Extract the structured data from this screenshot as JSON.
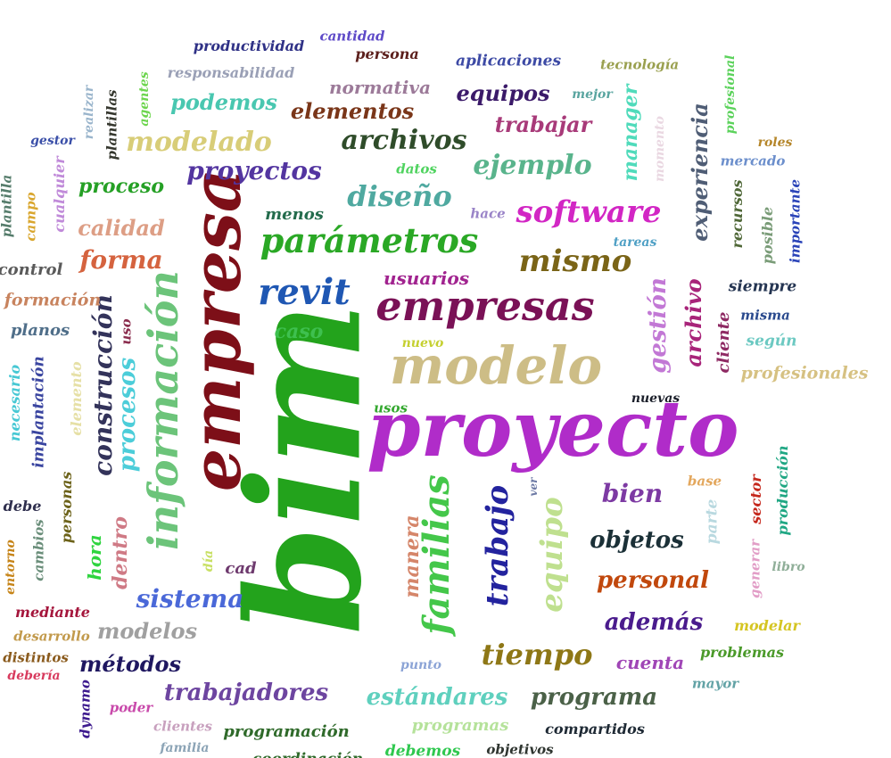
{
  "words": [
    {
      "text": "bim",
      "color": "#23a31c"
    },
    {
      "text": "proyecto",
      "color": "#b02cc9"
    },
    {
      "text": "empresa",
      "color": "#7d0f18"
    },
    {
      "text": "modelo",
      "color": "#cdbd86"
    },
    {
      "text": "información",
      "color": "#6cc47a"
    },
    {
      "text": "empresas",
      "color": "#7a1156"
    },
    {
      "text": "parámetros",
      "color": "#2aa825"
    },
    {
      "text": "revit",
      "color": "#1f57b3"
    },
    {
      "text": "software",
      "color": "#d226c4"
    },
    {
      "text": "mismo",
      "color": "#7a6417"
    },
    {
      "text": "familias",
      "color": "#44c74a"
    },
    {
      "text": "trabajo",
      "color": "#23239e"
    },
    {
      "text": "equipo",
      "color": "#bfe08f"
    },
    {
      "text": "proyectos",
      "color": "#5335a0"
    },
    {
      "text": "diseño",
      "color": "#4fa9a0"
    },
    {
      "text": "archivos",
      "color": "#2f4c2a"
    },
    {
      "text": "ejemplo",
      "color": "#59b48c"
    },
    {
      "text": "modelado",
      "color": "#d8cd78"
    },
    {
      "text": "forma",
      "color": "#d5633f"
    },
    {
      "text": "calidad",
      "color": "#dd9e85"
    },
    {
      "text": "construcción",
      "color": "#33335a"
    },
    {
      "text": "procesos",
      "color": "#4ccdd9"
    },
    {
      "text": "gestión",
      "color": "#c278d5"
    },
    {
      "text": "archivo",
      "color": "#a8247a"
    },
    {
      "text": "experiencia",
      "color": "#4f5d75"
    },
    {
      "text": "manager",
      "color": "#50dbbb"
    },
    {
      "text": "tiempo",
      "color": "#8e7716"
    },
    {
      "text": "sistema",
      "color": "#4a68d8"
    },
    {
      "text": "personal",
      "color": "#c1480d"
    },
    {
      "text": "objetos",
      "color": "#1b3037"
    },
    {
      "text": "bien",
      "color": "#7d3aa3"
    },
    {
      "text": "además",
      "color": "#4a1b8d"
    },
    {
      "text": "trabajadores",
      "color": "#6d45a0"
    },
    {
      "text": "estándares",
      "color": "#5fd0be"
    },
    {
      "text": "programa",
      "color": "#4b6148"
    },
    {
      "text": "modelos",
      "color": "#a0a0a0"
    },
    {
      "text": "métodos",
      "color": "#1f1760"
    },
    {
      "text": "trabajar",
      "color": "#a83a79"
    },
    {
      "text": "elementos",
      "color": "#7a3619"
    },
    {
      "text": "equipos",
      "color": "#3b1a69"
    },
    {
      "text": "podemos",
      "color": "#49c7b0"
    },
    {
      "text": "normativa",
      "color": "#9c7a99"
    },
    {
      "text": "proceso",
      "color": "#25a025"
    },
    {
      "text": "usuarios",
      "color": "#a1238f"
    },
    {
      "text": "cuenta",
      "color": "#a046b6"
    },
    {
      "text": "manera",
      "color": "#d5866a"
    },
    {
      "text": "dentro",
      "color": "#cf7a85"
    },
    {
      "text": "caso",
      "color": "#3ec04f"
    },
    {
      "text": "formación",
      "color": "#c8835e"
    },
    {
      "text": "planos",
      "color": "#4f6e89"
    },
    {
      "text": "hora",
      "color": "#2fd43f"
    },
    {
      "text": "profesionales",
      "color": "#d6c182"
    },
    {
      "text": "programas",
      "color": "#b5e29a"
    },
    {
      "text": "programación",
      "color": "#2f6a2a"
    },
    {
      "text": "control",
      "color": "#5a5a5a"
    },
    {
      "text": "cliente",
      "color": "#8e2a63"
    },
    {
      "text": "menos",
      "color": "#236b4c"
    },
    {
      "text": "siempre",
      "color": "#253552"
    },
    {
      "text": "recursos",
      "color": "#506838"
    },
    {
      "text": "posible",
      "color": "#7a9c78"
    },
    {
      "text": "importante",
      "color": "#2a43b8"
    },
    {
      "text": "según",
      "color": "#6cc9c2"
    },
    {
      "text": "producción",
      "color": "#20a784"
    },
    {
      "text": "sector",
      "color": "#c5271c"
    },
    {
      "text": "parte",
      "color": "#b9d9e0"
    },
    {
      "text": "generar",
      "color": "#e29ec7"
    },
    {
      "text": "elemento",
      "color": "#e6e0a6"
    },
    {
      "text": "implantación",
      "color": "#3a45a0"
    },
    {
      "text": "necesario",
      "color": "#47c8d4"
    },
    {
      "text": "personas",
      "color": "#6c6219"
    },
    {
      "text": "mediante",
      "color": "#a5163c"
    },
    {
      "text": "desarrollo",
      "color": "#c29a4c"
    },
    {
      "text": "distintos",
      "color": "#8a5a1c"
    },
    {
      "text": "debería",
      "color": "#d83b5e"
    },
    {
      "text": "debe",
      "color": "#2f2f4e"
    },
    {
      "text": "cambios",
      "color": "#6a8e7a"
    },
    {
      "text": "entorno",
      "color": "#c68418"
    },
    {
      "text": "dynamo",
      "color": "#3d1a8e"
    },
    {
      "text": "poder",
      "color": "#c94aab"
    },
    {
      "text": "clientes",
      "color": "#c8a0be"
    },
    {
      "text": "familia",
      "color": "#8ca4b6"
    },
    {
      "text": "cad",
      "color": "#6e3a6e"
    },
    {
      "text": "día",
      "color": "#c8e064"
    },
    {
      "text": "punto",
      "color": "#8ca4d6"
    },
    {
      "text": "mayor",
      "color": "#63a3a6"
    },
    {
      "text": "problemas",
      "color": "#4b9a2a"
    },
    {
      "text": "modelar",
      "color": "#d5c522"
    },
    {
      "text": "libro",
      "color": "#8fae98"
    },
    {
      "text": "base",
      "color": "#e3a75d"
    },
    {
      "text": "ver",
      "color": "#6d7aa5"
    },
    {
      "text": "nuevas",
      "color": "#1b1f2a"
    },
    {
      "text": "usos",
      "color": "#35a830"
    },
    {
      "text": "nuevo",
      "color": "#c5d030"
    },
    {
      "text": "uso",
      "color": "#8b2d4e"
    },
    {
      "text": "misma",
      "color": "#2a4a8e"
    },
    {
      "text": "hace",
      "color": "#9a84c8"
    },
    {
      "text": "tareas",
      "color": "#4fa0c5"
    },
    {
      "text": "datos",
      "color": "#4fd35f"
    },
    {
      "text": "mercado",
      "color": "#6c8fcc"
    },
    {
      "text": "roles",
      "color": "#b5862a"
    },
    {
      "text": "profesional",
      "color": "#5bd25b"
    },
    {
      "text": "momento",
      "color": "#ead8e2"
    },
    {
      "text": "mejor",
      "color": "#5aa5a0"
    },
    {
      "text": "tecnología",
      "color": "#9aa04f"
    },
    {
      "text": "aplicaciones",
      "color": "#3d4aa5"
    },
    {
      "text": "persona",
      "color": "#5c1f1c"
    },
    {
      "text": "cantidad",
      "color": "#5e4ac8"
    },
    {
      "text": "productividad",
      "color": "#2f3186"
    },
    {
      "text": "responsabilidad",
      "color": "#9aa0b6"
    },
    {
      "text": "agentes",
      "color": "#6dd54e"
    },
    {
      "text": "realizar",
      "color": "#9ab5cc"
    },
    {
      "text": "plantillas",
      "color": "#35372e"
    },
    {
      "text": "gestor",
      "color": "#3a4fa8"
    },
    {
      "text": "plantilla",
      "color": "#557c6b"
    },
    {
      "text": "campo",
      "color": "#d9a62e"
    },
    {
      "text": "cualquier",
      "color": "#c08ad9"
    },
    {
      "text": "compartidos",
      "color": "#1f2a35"
    },
    {
      "text": "objetivos",
      "color": "#2f3530"
    },
    {
      "text": "debemos",
      "color": "#2fc84f"
    },
    {
      "text": "coordinación",
      "color": "#2f6a2a"
    }
  ]
}
